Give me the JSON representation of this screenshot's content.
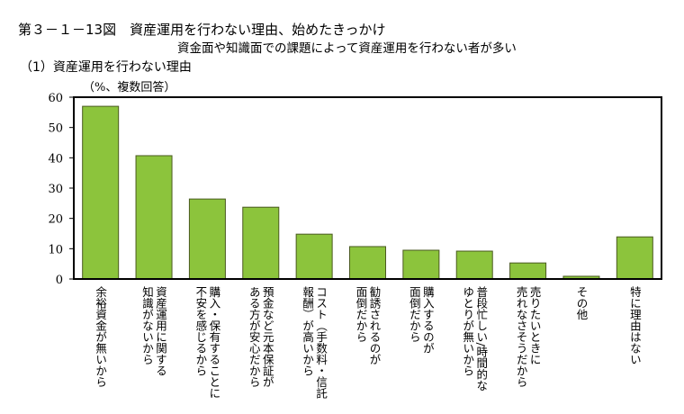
{
  "header": {
    "title": "第３－１－13図　資産運用を行わない理由、始めたきっかけ",
    "subtitle": "資金面や知識面での課題によって資産運用を行わない者が多い",
    "section": "（1）資産運用を行わない理由"
  },
  "chart_data": {
    "type": "bar",
    "ylabel": "（%、複数回答）",
    "ylim": [
      0,
      60
    ],
    "yticks": [
      "0",
      "10",
      "20",
      "30",
      "40",
      "50",
      "60"
    ],
    "grid": false,
    "categories": [
      "余裕資金が無いから",
      "資産運用に関する知識がないから",
      "購入・保有することに不安を感じるから",
      "預金など元本保証がある方が安心だから",
      "コスト（手数料・信託報酬）が高いから",
      "勧誘されるのが面倒だから",
      "購入するのが面倒だから",
      "普段忙しい/時間的なゆとりが無いから",
      "売りたいときに売れなさそうだから",
      "その他",
      "特に理由はない"
    ],
    "category_lines": [
      [
        "余裕資金が無いから"
      ],
      [
        "資産運用に関する",
        "知識がないから"
      ],
      [
        "購入・保有することに",
        "不安を感じるから"
      ],
      [
        "預金など元本保証が",
        "ある方が安心だから"
      ],
      [
        "コスト（手数料・信託",
        "報酬）が高いから"
      ],
      [
        "勧誘されるのが",
        "面倒だから"
      ],
      [
        "購入するのが",
        "面倒だから"
      ],
      [
        "普段忙しい/時間的な",
        "ゆとりが無いから"
      ],
      [
        "売りたいときに",
        "売れなさそうだから"
      ],
      [
        "その他"
      ],
      [
        "特に理由はない"
      ]
    ],
    "values": [
      57.0,
      40.7,
      26.4,
      23.7,
      14.8,
      10.7,
      9.5,
      9.2,
      5.3,
      0.9,
      13.9
    ],
    "bar_color": "#8cc43c",
    "bar_edge": "#4a5a20"
  }
}
